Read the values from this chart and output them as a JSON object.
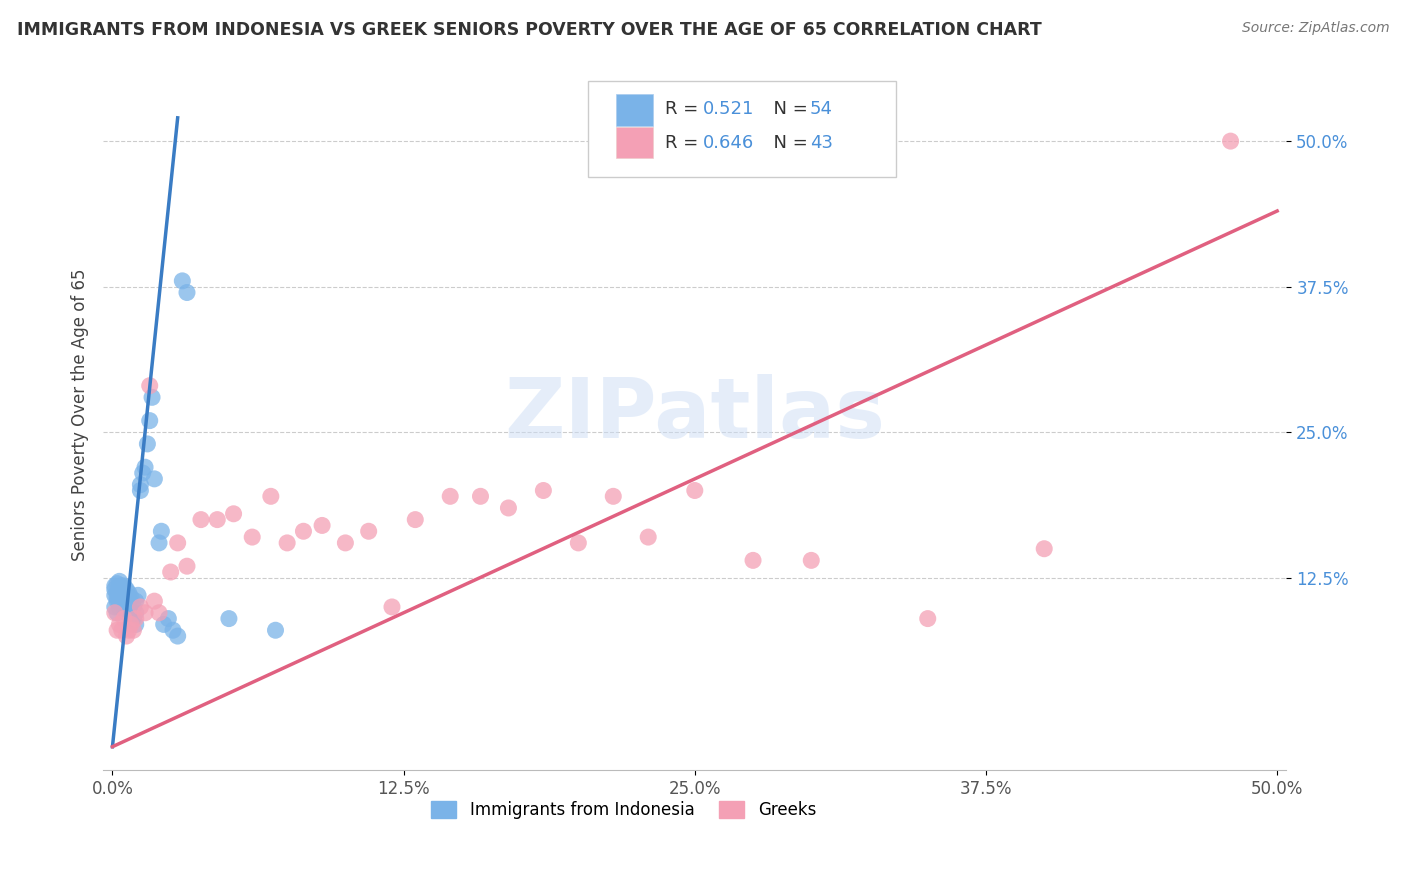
{
  "title": "IMMIGRANTS FROM INDONESIA VS GREEK SENIORS POVERTY OVER THE AGE OF 65 CORRELATION CHART",
  "source": "Source: ZipAtlas.com",
  "ylabel": "Seniors Poverty Over the Age of 65",
  "xlim": [
    -0.004,
    0.504
  ],
  "ylim": [
    -0.04,
    0.57
  ],
  "xtick_labels": [
    "0.0%",
    "12.5%",
    "25.0%",
    "37.5%",
    "50.0%"
  ],
  "xtick_vals": [
    0.0,
    0.125,
    0.25,
    0.375,
    0.5
  ],
  "ytick_labels": [
    "12.5%",
    "25.0%",
    "37.5%",
    "50.0%"
  ],
  "ytick_vals": [
    0.125,
    0.25,
    0.375,
    0.5
  ],
  "blue_R": "0.521",
  "blue_N": "54",
  "pink_R": "0.646",
  "pink_N": "43",
  "watermark": "ZIPatlas",
  "blue_scatter_x": [
    0.001,
    0.001,
    0.001,
    0.001,
    0.002,
    0.002,
    0.002,
    0.002,
    0.002,
    0.003,
    0.003,
    0.003,
    0.003,
    0.003,
    0.004,
    0.004,
    0.004,
    0.004,
    0.005,
    0.005,
    0.005,
    0.005,
    0.006,
    0.006,
    0.006,
    0.007,
    0.007,
    0.007,
    0.008,
    0.008,
    0.009,
    0.009,
    0.01,
    0.01,
    0.01,
    0.011,
    0.012,
    0.012,
    0.013,
    0.014,
    0.015,
    0.016,
    0.017,
    0.018,
    0.02,
    0.021,
    0.022,
    0.024,
    0.026,
    0.028,
    0.03,
    0.032,
    0.05,
    0.07
  ],
  "blue_scatter_y": [
    0.1,
    0.11,
    0.115,
    0.118,
    0.095,
    0.105,
    0.112,
    0.108,
    0.12,
    0.1,
    0.108,
    0.112,
    0.118,
    0.122,
    0.105,
    0.11,
    0.115,
    0.118,
    0.1,
    0.108,
    0.112,
    0.118,
    0.095,
    0.105,
    0.115,
    0.1,
    0.108,
    0.112,
    0.095,
    0.108,
    0.09,
    0.1,
    0.085,
    0.095,
    0.105,
    0.11,
    0.2,
    0.205,
    0.215,
    0.22,
    0.24,
    0.26,
    0.28,
    0.21,
    0.155,
    0.165,
    0.085,
    0.09,
    0.08,
    0.075,
    0.38,
    0.37,
    0.09,
    0.08
  ],
  "pink_scatter_x": [
    0.001,
    0.002,
    0.003,
    0.004,
    0.005,
    0.006,
    0.007,
    0.008,
    0.009,
    0.01,
    0.012,
    0.014,
    0.016,
    0.018,
    0.02,
    0.025,
    0.028,
    0.032,
    0.038,
    0.045,
    0.052,
    0.06,
    0.068,
    0.075,
    0.082,
    0.09,
    0.1,
    0.11,
    0.12,
    0.13,
    0.145,
    0.158,
    0.17,
    0.185,
    0.2,
    0.215,
    0.23,
    0.25,
    0.275,
    0.3,
    0.35,
    0.4,
    0.48
  ],
  "pink_scatter_y": [
    0.095,
    0.08,
    0.085,
    0.08,
    0.09,
    0.075,
    0.08,
    0.085,
    0.08,
    0.09,
    0.1,
    0.095,
    0.29,
    0.105,
    0.095,
    0.13,
    0.155,
    0.135,
    0.175,
    0.175,
    0.18,
    0.16,
    0.195,
    0.155,
    0.165,
    0.17,
    0.155,
    0.165,
    0.1,
    0.175,
    0.195,
    0.195,
    0.185,
    0.2,
    0.155,
    0.195,
    0.16,
    0.2,
    0.14,
    0.14,
    0.09,
    0.15,
    0.5
  ],
  "blue_color": "#7ab3e8",
  "pink_color": "#f4a0b5",
  "blue_line_color": "#3a7cc4",
  "pink_line_color": "#e06080",
  "background_color": "#ffffff",
  "grid_color": "#cccccc",
  "blue_line_x": [
    0.0,
    0.028
  ],
  "blue_line_y": [
    -0.02,
    0.52
  ],
  "pink_line_x": [
    0.0,
    0.5
  ],
  "pink_line_y": [
    -0.02,
    0.44
  ]
}
